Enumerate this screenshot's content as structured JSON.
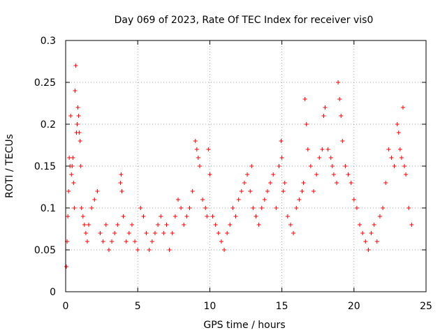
{
  "chart_data": {
    "type": "scatter",
    "title": "Day 069 of 2023, Rate Of TEC Index for receiver vis0",
    "xlabel": "GPS time / hours",
    "ylabel": "ROTI / TECUs",
    "xlim": [
      0,
      25
    ],
    "ylim": [
      0,
      0.3
    ],
    "x_ticks": [
      "0",
      "5",
      "10",
      "15",
      "20",
      "25"
    ],
    "y_ticks": [
      "0",
      "0.05",
      "0.1",
      "0.15",
      "0.2",
      "0.25",
      "0.3"
    ],
    "grid": true,
    "marker": "plus",
    "color": "#ff0000",
    "series": [
      {
        "x": [
          0.05,
          0.1,
          0.15,
          0.2,
          0.25,
          0.3,
          0.35,
          0.4,
          0.45,
          0.5,
          0.55,
          0.6,
          0.65,
          0.7,
          0.75,
          0.8,
          0.85,
          0.9,
          0.95,
          1.0,
          1.05,
          1.1,
          1.2,
          1.3,
          1.4,
          1.5,
          1.6,
          1.8,
          2.0,
          2.2,
          2.4,
          2.6,
          2.8,
          3.0,
          3.2,
          3.4,
          3.6,
          3.8,
          3.85,
          3.9,
          4.0,
          4.2,
          4.4,
          4.6,
          4.8,
          5.0,
          5.2,
          5.4,
          5.6,
          5.8,
          6.0,
          6.2,
          6.4,
          6.6,
          6.8,
          7.0,
          7.2,
          7.4,
          7.6,
          7.8,
          8.0,
          8.2,
          8.4,
          8.6,
          8.8,
          9.0,
          9.1,
          9.2,
          9.3,
          9.5,
          9.7,
          9.8,
          9.9,
          10.0,
          10.2,
          10.4,
          10.6,
          10.8,
          11.0,
          11.2,
          11.4,
          11.6,
          11.8,
          12.0,
          12.2,
          12.4,
          12.6,
          12.8,
          12.9,
          13.0,
          13.2,
          13.4,
          13.6,
          13.8,
          14.0,
          14.2,
          14.4,
          14.6,
          14.8,
          14.95,
          15.0,
          15.1,
          15.2,
          15.4,
          15.6,
          15.8,
          16.0,
          16.2,
          16.4,
          16.5,
          16.6,
          16.7,
          16.8,
          17.0,
          17.2,
          17.4,
          17.6,
          17.8,
          17.9,
          18.0,
          18.2,
          18.4,
          18.5,
          18.6,
          18.8,
          18.9,
          19.0,
          19.1,
          19.2,
          19.4,
          19.6,
          19.8,
          20.0,
          20.2,
          20.4,
          20.6,
          20.8,
          21.0,
          21.2,
          21.4,
          21.6,
          21.8,
          22.0,
          22.2,
          22.4,
          22.6,
          22.8,
          23.0,
          23.1,
          23.2,
          23.3,
          23.4,
          23.5,
          23.6,
          23.8,
          24.0
        ],
        "y": [
          0.03,
          0.06,
          0.09,
          0.12,
          0.16,
          0.15,
          0.21,
          0.14,
          0.15,
          0.16,
          0.13,
          0.1,
          0.24,
          0.27,
          0.19,
          0.2,
          0.22,
          0.21,
          0.19,
          0.18,
          0.15,
          0.1,
          0.09,
          0.08,
          0.07,
          0.06,
          0.08,
          0.1,
          0.11,
          0.12,
          0.07,
          0.06,
          0.08,
          0.05,
          0.06,
          0.07,
          0.08,
          0.13,
          0.14,
          0.12,
          0.09,
          0.06,
          0.07,
          0.08,
          0.06,
          0.05,
          0.1,
          0.09,
          0.07,
          0.05,
          0.06,
          0.07,
          0.08,
          0.09,
          0.07,
          0.08,
          0.05,
          0.07,
          0.09,
          0.11,
          0.1,
          0.08,
          0.09,
          0.1,
          0.12,
          0.18,
          0.17,
          0.16,
          0.15,
          0.11,
          0.1,
          0.09,
          0.17,
          0.14,
          0.09,
          0.08,
          0.07,
          0.06,
          0.05,
          0.07,
          0.08,
          0.1,
          0.09,
          0.11,
          0.12,
          0.13,
          0.14,
          0.12,
          0.15,
          0.1,
          0.09,
          0.08,
          0.1,
          0.11,
          0.12,
          0.13,
          0.14,
          0.1,
          0.15,
          0.18,
          0.16,
          0.12,
          0.13,
          0.09,
          0.08,
          0.07,
          0.1,
          0.11,
          0.12,
          0.13,
          0.23,
          0.2,
          0.17,
          0.15,
          0.12,
          0.14,
          0.16,
          0.17,
          0.21,
          0.22,
          0.17,
          0.16,
          0.15,
          0.14,
          0.13,
          0.25,
          0.23,
          0.21,
          0.18,
          0.15,
          0.14,
          0.13,
          0.11,
          0.1,
          0.08,
          0.07,
          0.06,
          0.05,
          0.07,
          0.08,
          0.06,
          0.09,
          0.1,
          0.13,
          0.17,
          0.16,
          0.15,
          0.2,
          0.19,
          0.17,
          0.16,
          0.22,
          0.15,
          0.14,
          0.1,
          0.08
        ]
      }
    ]
  }
}
